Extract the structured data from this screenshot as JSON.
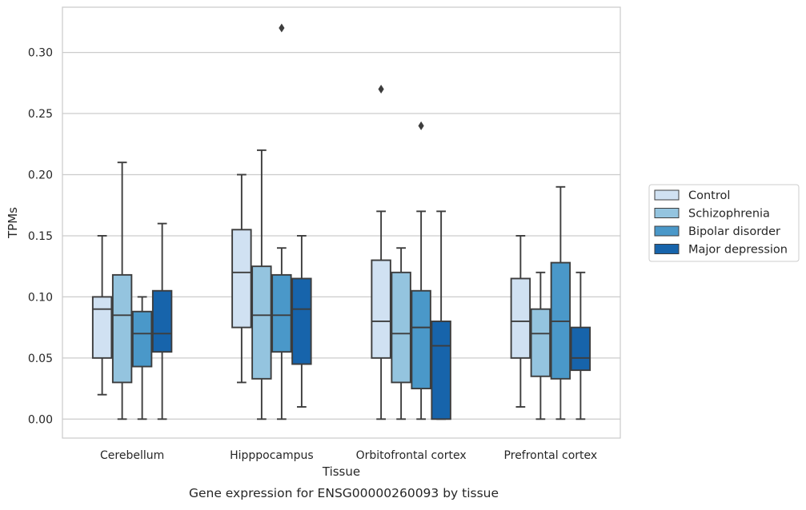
{
  "chart_data": {
    "type": "box",
    "title": "",
    "caption": "Gene expression for ENSG00000260093 by tissue",
    "xlabel": "Tissue",
    "ylabel": "TPMs",
    "ylim": [
      -0.0155,
      0.337
    ],
    "yticks": [
      0.0,
      0.05,
      0.1,
      0.15,
      0.2,
      0.25,
      0.3
    ],
    "ytick_labels": [
      "0.00",
      "0.05",
      "0.10",
      "0.15",
      "0.20",
      "0.25",
      "0.30"
    ],
    "grid": true,
    "legend_position": "right",
    "categories": [
      "Cerebellum",
      "Hipppocampus",
      "Orbitofrontal cortex",
      "Prefrontal cortex"
    ],
    "series": [
      {
        "name": "Control",
        "color": "#d0e1f2",
        "boxes": [
          {
            "whislo": 0.02,
            "q1": 0.05,
            "med": 0.09,
            "q3": 0.1,
            "whishi": 0.15,
            "fliers": []
          },
          {
            "whislo": 0.03,
            "q1": 0.075,
            "med": 0.12,
            "q3": 0.155,
            "whishi": 0.2,
            "fliers": []
          },
          {
            "whislo": 0.0,
            "q1": 0.05,
            "med": 0.08,
            "q3": 0.13,
            "whishi": 0.17,
            "fliers": [
              0.27
            ]
          },
          {
            "whislo": 0.01,
            "q1": 0.05,
            "med": 0.08,
            "q3": 0.115,
            "whishi": 0.15,
            "fliers": []
          }
        ]
      },
      {
        "name": "Schizophrenia",
        "color": "#94c4df",
        "boxes": [
          {
            "whislo": 0.0,
            "q1": 0.03,
            "med": 0.085,
            "q3": 0.118,
            "whishi": 0.21,
            "fliers": []
          },
          {
            "whislo": 0.0,
            "q1": 0.033,
            "med": 0.085,
            "q3": 0.125,
            "whishi": 0.22,
            "fliers": []
          },
          {
            "whislo": 0.0,
            "q1": 0.03,
            "med": 0.07,
            "q3": 0.12,
            "whishi": 0.14,
            "fliers": []
          },
          {
            "whislo": 0.0,
            "q1": 0.035,
            "med": 0.07,
            "q3": 0.09,
            "whishi": 0.12,
            "fliers": []
          }
        ]
      },
      {
        "name": "Bipolar disorder",
        "color": "#4a98c9",
        "boxes": [
          {
            "whislo": 0.0,
            "q1": 0.043,
            "med": 0.07,
            "q3": 0.088,
            "whishi": 0.1,
            "fliers": []
          },
          {
            "whislo": 0.0,
            "q1": 0.055,
            "med": 0.085,
            "q3": 0.118,
            "whishi": 0.14,
            "fliers": [
              0.32
            ]
          },
          {
            "whislo": 0.0,
            "q1": 0.025,
            "med": 0.075,
            "q3": 0.105,
            "whishi": 0.17,
            "fliers": [
              0.24
            ]
          },
          {
            "whislo": 0.0,
            "q1": 0.033,
            "med": 0.08,
            "q3": 0.128,
            "whishi": 0.19,
            "fliers": []
          }
        ]
      },
      {
        "name": "Major depression",
        "color": "#1764ab",
        "boxes": [
          {
            "whislo": 0.0,
            "q1": 0.055,
            "med": 0.07,
            "q3": 0.105,
            "whishi": 0.16,
            "fliers": []
          },
          {
            "whislo": 0.01,
            "q1": 0.045,
            "med": 0.09,
            "q3": 0.115,
            "whishi": 0.15,
            "fliers": []
          },
          {
            "whislo": 0.0,
            "q1": 0.0,
            "med": 0.06,
            "q3": 0.08,
            "whishi": 0.17,
            "fliers": []
          },
          {
            "whislo": 0.0,
            "q1": 0.04,
            "med": 0.05,
            "q3": 0.075,
            "whishi": 0.12,
            "fliers": []
          }
        ]
      }
    ]
  }
}
